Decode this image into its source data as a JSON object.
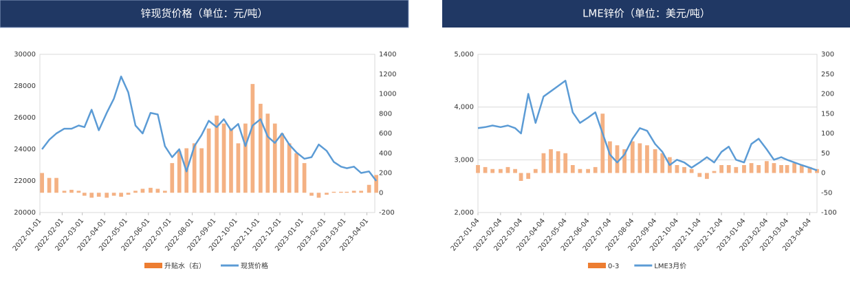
{
  "chart_data": [
    {
      "type": "combo",
      "title": "锌现货价格（单位：元/吨）",
      "x": [
        "2022-01-04",
        "2022-01-14",
        "2022-01-24",
        "2022-02-04",
        "2022-02-14",
        "2022-02-24",
        "2022-03-04",
        "2022-03-14",
        "2022-03-24",
        "2022-04-04",
        "2022-04-14",
        "2022-04-24",
        "2022-05-04",
        "2022-05-14",
        "2022-05-24",
        "2022-06-04",
        "2022-06-14",
        "2022-06-24",
        "2022-07-04",
        "2022-07-14",
        "2022-07-24",
        "2022-08-04",
        "2022-08-14",
        "2022-08-24",
        "2022-09-04",
        "2022-09-14",
        "2022-09-24",
        "2022-10-04",
        "2022-10-14",
        "2022-10-24",
        "2022-11-04",
        "2022-11-14",
        "2022-11-24",
        "2022-12-04",
        "2022-12-14",
        "2022-12-24",
        "2023-01-04",
        "2023-01-14",
        "2023-01-24",
        "2023-02-04",
        "2023-02-14",
        "2023-02-24",
        "2023-03-04",
        "2023-03-14",
        "2023-03-24",
        "2023-04-04",
        "2023-04-14"
      ],
      "series": [
        {
          "name": "升贴水（右）",
          "type": "bar",
          "axis": "y2",
          "color": "#f4b183",
          "values": [
            200,
            150,
            150,
            20,
            30,
            20,
            -30,
            -50,
            -40,
            -50,
            -30,
            -40,
            -20,
            20,
            40,
            50,
            40,
            20,
            300,
            420,
            450,
            500,
            450,
            650,
            780,
            700,
            650,
            500,
            700,
            1100,
            900,
            800,
            700,
            600,
            500,
            400,
            300,
            -30,
            -50,
            -20,
            10,
            10,
            10,
            20,
            20,
            80,
            180
          ]
        },
        {
          "name": "现货价格",
          "type": "line",
          "axis": "y",
          "color": "#5b9bd5",
          "values": [
            24000,
            24600,
            25000,
            25300,
            25300,
            25500,
            25400,
            26500,
            25200,
            26300,
            27200,
            28600,
            27600,
            25500,
            25000,
            26300,
            26200,
            24200,
            23500,
            24000,
            22600,
            24200,
            24900,
            25800,
            25400,
            25900,
            25200,
            25600,
            24200,
            25500,
            25900,
            24800,
            24400,
            25000,
            24300,
            23800,
            23400,
            23500,
            24300,
            23900,
            23200,
            22900,
            22800,
            22900,
            22500,
            22600,
            22000
          ]
        }
      ],
      "xlim": [
        "2022-01-01",
        "2023-04-12"
      ],
      "xticks": [
        "2022-01-01",
        "2022-02-01",
        "2022-03-01",
        "2022-04-01",
        "2022-05-01",
        "2022-06-01",
        "2022-07-01",
        "2022-08-01",
        "2022-09-01",
        "2022-10-01",
        "2022-11-01",
        "2022-12-01",
        "2023-01-01",
        "2023-02-01",
        "2023-03-01",
        "2023-04-01"
      ],
      "ylim": [
        20000,
        30000
      ],
      "yticks": [
        20000,
        22000,
        24000,
        26000,
        28000,
        30000
      ],
      "y2lim": [
        -200,
        1400
      ],
      "y2ticks": [
        -200,
        0,
        200,
        400,
        600,
        800,
        1000,
        1200,
        1400
      ],
      "grid": false
    },
    {
      "type": "combo",
      "title": "LME锌价（单位：美元/吨）",
      "x": [
        "2022-01-04",
        "2022-01-14",
        "2022-01-24",
        "2022-02-04",
        "2022-02-14",
        "2022-02-24",
        "2022-03-04",
        "2022-03-14",
        "2022-03-24",
        "2022-04-04",
        "2022-04-14",
        "2022-04-24",
        "2022-05-04",
        "2022-05-14",
        "2022-05-24",
        "2022-06-04",
        "2022-06-14",
        "2022-06-24",
        "2022-07-04",
        "2022-07-14",
        "2022-07-24",
        "2022-08-04",
        "2022-08-14",
        "2022-08-24",
        "2022-09-04",
        "2022-09-14",
        "2022-09-24",
        "2022-10-04",
        "2022-10-14",
        "2022-10-24",
        "2022-11-04",
        "2022-11-14",
        "2022-11-24",
        "2022-12-04",
        "2022-12-14",
        "2022-12-24",
        "2023-01-04",
        "2023-01-14",
        "2023-01-24",
        "2023-02-04",
        "2023-02-14",
        "2023-02-24",
        "2023-03-04",
        "2023-03-14",
        "2023-03-24",
        "2023-04-04",
        "2023-04-14"
      ],
      "series": [
        {
          "name": "0-3",
          "type": "bar",
          "axis": "y2",
          "color": "#f4b183",
          "values": [
            20,
            15,
            10,
            10,
            15,
            10,
            -20,
            -15,
            10,
            50,
            60,
            55,
            50,
            20,
            10,
            10,
            15,
            150,
            80,
            70,
            60,
            80,
            75,
            70,
            60,
            50,
            40,
            20,
            15,
            10,
            -10,
            -15,
            5,
            20,
            20,
            15,
            20,
            25,
            20,
            30,
            25,
            20,
            20,
            25,
            20,
            15,
            10
          ]
        },
        {
          "name": "LME3月价",
          "type": "line",
          "axis": "y",
          "color": "#5b9bd5",
          "values": [
            3600,
            3620,
            3650,
            3620,
            3650,
            3600,
            3500,
            4250,
            3700,
            4200,
            4300,
            4400,
            4500,
            3900,
            3700,
            3800,
            3900,
            3500,
            3100,
            2950,
            3100,
            3400,
            3600,
            3550,
            3300,
            3150,
            2900,
            3000,
            2950,
            2850,
            2950,
            3050,
            2950,
            3150,
            3250,
            3000,
            2950,
            3300,
            3400,
            3200,
            3000,
            3050,
            3000,
            2950,
            2900,
            2850,
            2800
          ]
        }
      ],
      "xlim": [
        "2022-01-04",
        "2023-04-14"
      ],
      "xticks": [
        "2022-01-04",
        "2022-02-04",
        "2022-03-04",
        "2022-04-04",
        "2022-05-04",
        "2022-06-04",
        "2022-07-04",
        "2022-08-04",
        "2022-09-04",
        "2022-10-04",
        "2022-11-04",
        "2022-12-04",
        "2023-01-04",
        "2023-02-04",
        "2023-03-04",
        "2023-04-04"
      ],
      "ylim": [
        2000,
        5000
      ],
      "yticks": [
        {
          "value": 2000,
          "label": "2,000"
        },
        {
          "value": 3000,
          "label": "3,000"
        },
        {
          "value": 4000,
          "label": "4,000"
        },
        {
          "value": 5000,
          "label": "5,000"
        }
      ],
      "y2lim": [
        -100,
        300
      ],
      "y2ticks": [
        -100,
        -50,
        0,
        50,
        100,
        150,
        200,
        250,
        300
      ],
      "grid": true
    }
  ]
}
